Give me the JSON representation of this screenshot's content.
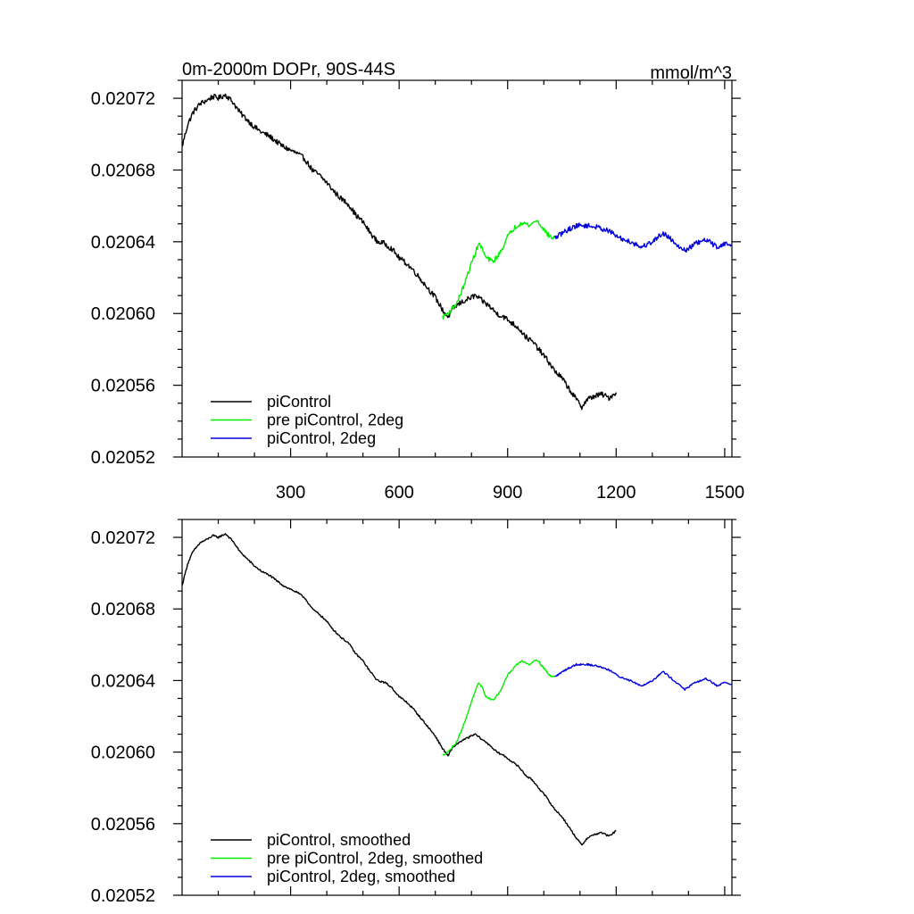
{
  "chart_data": [
    {
      "type": "line",
      "title": "0m-2000m DOPr, 90S-44S",
      "units": "mmol/m^3",
      "xlabel": "",
      "ylabel": "",
      "xlim": [
        0,
        1520
      ],
      "ylim": [
        0.02052,
        0.02073
      ],
      "xticks": [
        300,
        600,
        900,
        1200,
        1500
      ],
      "yticks": [
        "0.02052",
        "0.02056",
        "0.02060",
        "0.02064",
        "0.02068",
        "0.02072"
      ],
      "show_xtick_labels": true,
      "legend_position": "bottom-left",
      "series": [
        {
          "name": "piControl",
          "color": "#000000",
          "noise": 1.5e-06,
          "points": [
            [
              0,
              0.020693
            ],
            [
              15,
              0.020705
            ],
            [
              30,
              0.020712
            ],
            [
              50,
              0.020717
            ],
            [
              70,
              0.020719
            ],
            [
              85,
              0.020721
            ],
            [
              100,
              0.02072
            ],
            [
              120,
              0.020722
            ],
            [
              140,
              0.020718
            ],
            [
              160,
              0.020712
            ],
            [
              180,
              0.020708
            ],
            [
              200,
              0.020704
            ],
            [
              220,
              0.020701
            ],
            [
              240,
              0.020699
            ],
            [
              260,
              0.020696
            ],
            [
              280,
              0.020693
            ],
            [
              300,
              0.020691
            ],
            [
              320,
              0.020689
            ],
            [
              340,
              0.020686
            ],
            [
              360,
              0.02068
            ],
            [
              380,
              0.020677
            ],
            [
              400,
              0.020673
            ],
            [
              420,
              0.020668
            ],
            [
              440,
              0.020664
            ],
            [
              460,
              0.020661
            ],
            [
              480,
              0.020655
            ],
            [
              500,
              0.020651
            ],
            [
              520,
              0.020645
            ],
            [
              540,
              0.02064
            ],
            [
              560,
              0.020639
            ],
            [
              580,
              0.020636
            ],
            [
              600,
              0.020631
            ],
            [
              620,
              0.020628
            ],
            [
              640,
              0.020624
            ],
            [
              660,
              0.020619
            ],
            [
              680,
              0.020614
            ],
            [
              700,
              0.020609
            ],
            [
              720,
              0.020602
            ],
            [
              735,
              0.020598
            ],
            [
              750,
              0.020603
            ],
            [
              770,
              0.020606
            ],
            [
              790,
              0.020608
            ],
            [
              810,
              0.02061
            ],
            [
              830,
              0.020607
            ],
            [
              850,
              0.020604
            ],
            [
              870,
              0.0206
            ],
            [
              890,
              0.020598
            ],
            [
              910,
              0.020595
            ],
            [
              930,
              0.020592
            ],
            [
              950,
              0.020587
            ],
            [
              970,
              0.020584
            ],
            [
              990,
              0.020579
            ],
            [
              1010,
              0.020574
            ],
            [
              1030,
              0.020568
            ],
            [
              1050,
              0.020564
            ],
            [
              1070,
              0.020558
            ],
            [
              1090,
              0.020552
            ],
            [
              1105,
              0.020548
            ],
            [
              1120,
              0.020552
            ],
            [
              1140,
              0.020554
            ],
            [
              1160,
              0.020555
            ],
            [
              1180,
              0.020553
            ],
            [
              1200,
              0.020556
            ]
          ]
        },
        {
          "name": "pre piControl, 2deg",
          "color": "#00ee00",
          "noise": 1.3e-06,
          "points": [
            [
              720,
              0.020598
            ],
            [
              740,
              0.020601
            ],
            [
              760,
              0.020606
            ],
            [
              780,
              0.020616
            ],
            [
              800,
              0.020628
            ],
            [
              820,
              0.020639
            ],
            [
              830,
              0.020636
            ],
            [
              840,
              0.020631
            ],
            [
              860,
              0.020629
            ],
            [
              880,
              0.020634
            ],
            [
              900,
              0.020643
            ],
            [
              920,
              0.020648
            ],
            [
              940,
              0.020651
            ],
            [
              960,
              0.020649
            ],
            [
              980,
              0.020652
            ],
            [
              1000,
              0.020647
            ],
            [
              1015,
              0.020643
            ],
            [
              1030,
              0.020642
            ]
          ]
        },
        {
          "name": "piControl, 2deg",
          "color": "#0000dd",
          "noise": 1.4e-06,
          "points": [
            [
              1030,
              0.020642
            ],
            [
              1060,
              0.020646
            ],
            [
              1090,
              0.020649
            ],
            [
              1120,
              0.020649
            ],
            [
              1150,
              0.020648
            ],
            [
              1180,
              0.020646
            ],
            [
              1210,
              0.020642
            ],
            [
              1240,
              0.02064
            ],
            [
              1270,
              0.020637
            ],
            [
              1300,
              0.02064
            ],
            [
              1330,
              0.020645
            ],
            [
              1360,
              0.02064
            ],
            [
              1390,
              0.020635
            ],
            [
              1420,
              0.020639
            ],
            [
              1450,
              0.020641
            ],
            [
              1480,
              0.020637
            ],
            [
              1500,
              0.020639
            ],
            [
              1520,
              0.020638
            ]
          ]
        }
      ]
    },
    {
      "type": "line",
      "title": "",
      "units": "",
      "xlabel": "",
      "ylabel": "",
      "xlim": [
        0,
        1520
      ],
      "ylim": [
        0.02052,
        0.02073
      ],
      "xticks": [
        300,
        600,
        900,
        1200,
        1500
      ],
      "yticks": [
        "0.02052",
        "0.02056",
        "0.02060",
        "0.02064",
        "0.02068",
        "0.02072"
      ],
      "show_xtick_labels": false,
      "legend_position": "bottom-left",
      "series": [
        {
          "name": "piControl, smoothed",
          "color": "#000000",
          "noise": 5e-07,
          "points": [
            [
              0,
              0.020693
            ],
            [
              15,
              0.020705
            ],
            [
              30,
              0.020712
            ],
            [
              50,
              0.020717
            ],
            [
              70,
              0.020719
            ],
            [
              85,
              0.020721
            ],
            [
              100,
              0.02072
            ],
            [
              120,
              0.020722
            ],
            [
              140,
              0.020718
            ],
            [
              160,
              0.020712
            ],
            [
              180,
              0.020708
            ],
            [
              200,
              0.020704
            ],
            [
              220,
              0.020701
            ],
            [
              240,
              0.020699
            ],
            [
              260,
              0.020696
            ],
            [
              280,
              0.020693
            ],
            [
              300,
              0.020691
            ],
            [
              320,
              0.020689
            ],
            [
              340,
              0.020686
            ],
            [
              360,
              0.02068
            ],
            [
              380,
              0.020677
            ],
            [
              400,
              0.020673
            ],
            [
              420,
              0.020668
            ],
            [
              440,
              0.020664
            ],
            [
              460,
              0.020661
            ],
            [
              480,
              0.020655
            ],
            [
              500,
              0.020651
            ],
            [
              520,
              0.020645
            ],
            [
              540,
              0.02064
            ],
            [
              560,
              0.020639
            ],
            [
              580,
              0.020636
            ],
            [
              600,
              0.020631
            ],
            [
              620,
              0.020628
            ],
            [
              640,
              0.020624
            ],
            [
              660,
              0.020619
            ],
            [
              680,
              0.020614
            ],
            [
              700,
              0.020609
            ],
            [
              720,
              0.020602
            ],
            [
              735,
              0.020598
            ],
            [
              750,
              0.020603
            ],
            [
              770,
              0.020606
            ],
            [
              790,
              0.020608
            ],
            [
              810,
              0.02061
            ],
            [
              830,
              0.020607
            ],
            [
              850,
              0.020604
            ],
            [
              870,
              0.0206
            ],
            [
              890,
              0.020598
            ],
            [
              910,
              0.020595
            ],
            [
              930,
              0.020592
            ],
            [
              950,
              0.020587
            ],
            [
              970,
              0.020584
            ],
            [
              990,
              0.020579
            ],
            [
              1010,
              0.020574
            ],
            [
              1030,
              0.020568
            ],
            [
              1050,
              0.020564
            ],
            [
              1070,
              0.020558
            ],
            [
              1090,
              0.020552
            ],
            [
              1105,
              0.020548
            ],
            [
              1120,
              0.020552
            ],
            [
              1140,
              0.020554
            ],
            [
              1160,
              0.020555
            ],
            [
              1180,
              0.020553
            ],
            [
              1200,
              0.020556
            ]
          ]
        },
        {
          "name": "pre piControl, 2deg, smoothed",
          "color": "#00ee00",
          "noise": 5e-07,
          "points": [
            [
              720,
              0.020598
            ],
            [
              740,
              0.020601
            ],
            [
              760,
              0.020606
            ],
            [
              780,
              0.020616
            ],
            [
              800,
              0.020628
            ],
            [
              820,
              0.020639
            ],
            [
              830,
              0.020636
            ],
            [
              840,
              0.020631
            ],
            [
              860,
              0.020629
            ],
            [
              880,
              0.020634
            ],
            [
              900,
              0.020643
            ],
            [
              920,
              0.020648
            ],
            [
              940,
              0.020651
            ],
            [
              960,
              0.020649
            ],
            [
              980,
              0.020652
            ],
            [
              1000,
              0.020647
            ],
            [
              1015,
              0.020643
            ],
            [
              1030,
              0.020642
            ]
          ]
        },
        {
          "name": "piControl, 2deg, smoothed",
          "color": "#0000dd",
          "noise": 5e-07,
          "points": [
            [
              1030,
              0.020642
            ],
            [
              1060,
              0.020646
            ],
            [
              1090,
              0.020649
            ],
            [
              1120,
              0.020649
            ],
            [
              1150,
              0.020648
            ],
            [
              1180,
              0.020646
            ],
            [
              1210,
              0.020642
            ],
            [
              1240,
              0.02064
            ],
            [
              1270,
              0.020637
            ],
            [
              1300,
              0.02064
            ],
            [
              1330,
              0.020645
            ],
            [
              1360,
              0.02064
            ],
            [
              1390,
              0.020635
            ],
            [
              1420,
              0.020639
            ],
            [
              1450,
              0.020641
            ],
            [
              1480,
              0.020637
            ],
            [
              1500,
              0.020639
            ],
            [
              1520,
              0.020638
            ]
          ]
        }
      ]
    }
  ]
}
